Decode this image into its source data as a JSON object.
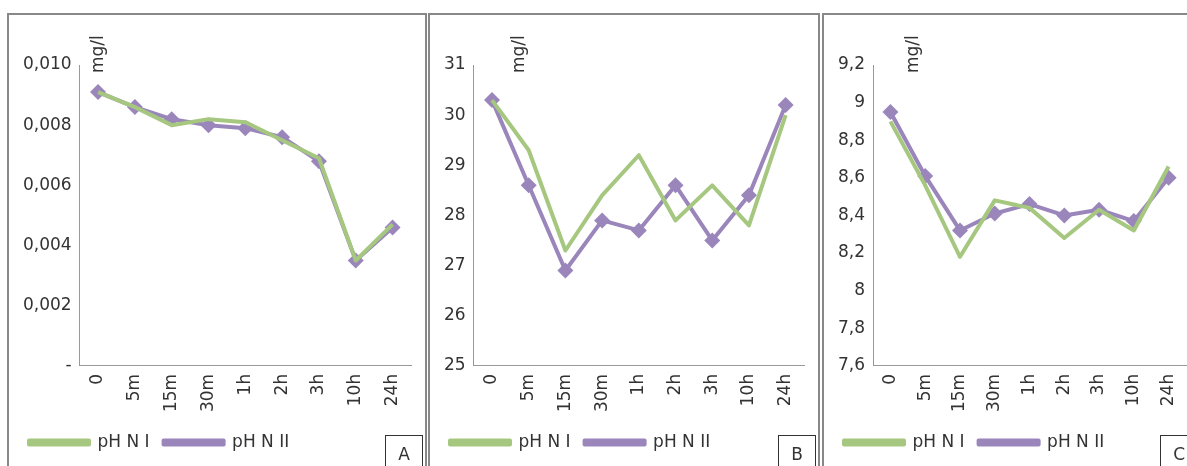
{
  "chart_data": [
    {
      "type": "line",
      "ylabel": "mg/l",
      "categories": [
        "0",
        "5m",
        "15m",
        "30m",
        "1h",
        "2h",
        "3h",
        "10h",
        "24h"
      ],
      "series": [
        {
          "name": "pH N I",
          "color": "#a6c77f",
          "marker": "none",
          "values": [
            0.0091,
            0.0086,
            0.008,
            0.0082,
            0.0081,
            0.0075,
            0.0069,
            0.0035,
            0.0047
          ]
        },
        {
          "name": "pH N II",
          "color": "#9a86bb",
          "marker": "diamond",
          "values": [
            0.0091,
            0.0086,
            0.0082,
            0.008,
            0.0079,
            0.0076,
            0.0068,
            0.0035,
            0.0046
          ]
        }
      ],
      "ylim": [
        0,
        0.01
      ],
      "yticks": [
        {
          "value": 0,
          "label": "-"
        },
        {
          "value": 0.002,
          "label": "0,002"
        },
        {
          "value": 0.004,
          "label": "0,004"
        },
        {
          "value": 0.006,
          "label": "0,006"
        },
        {
          "value": 0.008,
          "label": "0,008"
        },
        {
          "value": 0.01,
          "label": "0,010"
        }
      ],
      "grid": false,
      "legend": "bottom",
      "annotations": [
        "A"
      ]
    },
    {
      "type": "line",
      "ylabel": "mg/l",
      "categories": [
        "0",
        "5m",
        "15m",
        "30m",
        "1h",
        "2h",
        "3h",
        "10h",
        "24h"
      ],
      "series": [
        {
          "name": "pH N I",
          "color": "#a6c77f",
          "marker": "none",
          "values": [
            30.3,
            29.3,
            27.3,
            28.4,
            29.2,
            27.9,
            28.6,
            27.8,
            30.0
          ]
        },
        {
          "name": "pH N II",
          "color": "#9a86bb",
          "marker": "diamond",
          "values": [
            30.3,
            28.6,
            26.9,
            27.9,
            27.7,
            28.6,
            27.5,
            28.4,
            30.2
          ]
        }
      ],
      "ylim": [
        25,
        31
      ],
      "yticks": [
        25,
        26,
        27,
        28,
        29,
        30,
        31
      ],
      "grid": false,
      "legend": "bottom",
      "annotations": [
        "B"
      ]
    },
    {
      "type": "line",
      "ylabel": "mg/l",
      "categories": [
        "0",
        "5m",
        "15m",
        "30m",
        "1h",
        "2h",
        "3h",
        "10h",
        "24h"
      ],
      "series": [
        {
          "name": "pH N I",
          "color": "#a6c77f",
          "marker": "none",
          "values": [
            8.9,
            8.56,
            8.18,
            8.48,
            8.44,
            8.28,
            8.43,
            8.32,
            8.66
          ]
        },
        {
          "name": "pH N II",
          "color": "#9a86bb",
          "marker": "diamond",
          "values": [
            8.95,
            8.61,
            8.32,
            8.41,
            8.46,
            8.4,
            8.43,
            8.37,
            8.6
          ]
        }
      ],
      "ylim": [
        7.6,
        9.2
      ],
      "yticks": [
        {
          "value": 7.6,
          "label": "7,6"
        },
        {
          "value": 7.8,
          "label": "7,8"
        },
        {
          "value": 8,
          "label": "8"
        },
        {
          "value": 8.2,
          "label": "8,2"
        },
        {
          "value": 8.4,
          "label": "8,4"
        },
        {
          "value": 8.6,
          "label": "8,6"
        },
        {
          "value": 8.8,
          "label": "8,8"
        },
        {
          "value": 9,
          "label": "9"
        },
        {
          "value": 9.2,
          "label": "9,2"
        }
      ],
      "grid": false,
      "legend": "bottom",
      "annotations": [
        "C"
      ]
    }
  ]
}
